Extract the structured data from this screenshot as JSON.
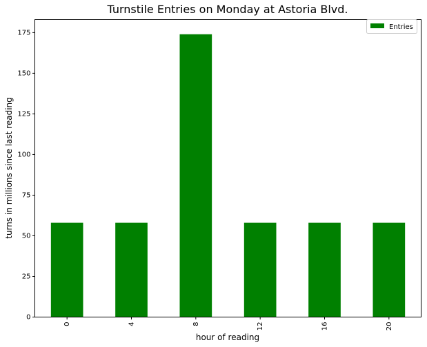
{
  "chart_data": {
    "type": "bar",
    "title": "Turnstile Entries on Monday at Astoria Blvd.",
    "xlabel": "hour of reading",
    "ylabel": "turns in millions since last reading",
    "categories": [
      "0",
      "4",
      "8",
      "12",
      "16",
      "20"
    ],
    "series": [
      {
        "name": "Entries",
        "values": [
          58,
          58,
          174,
          58,
          58,
          58
        ],
        "color": "#008000"
      }
    ],
    "ylim": [
      0,
      183
    ],
    "yticks": [
      0,
      25,
      50,
      75,
      100,
      125,
      150,
      175
    ],
    "x_tick_rotation": 90,
    "grid": false,
    "legend_position": "top-right"
  }
}
